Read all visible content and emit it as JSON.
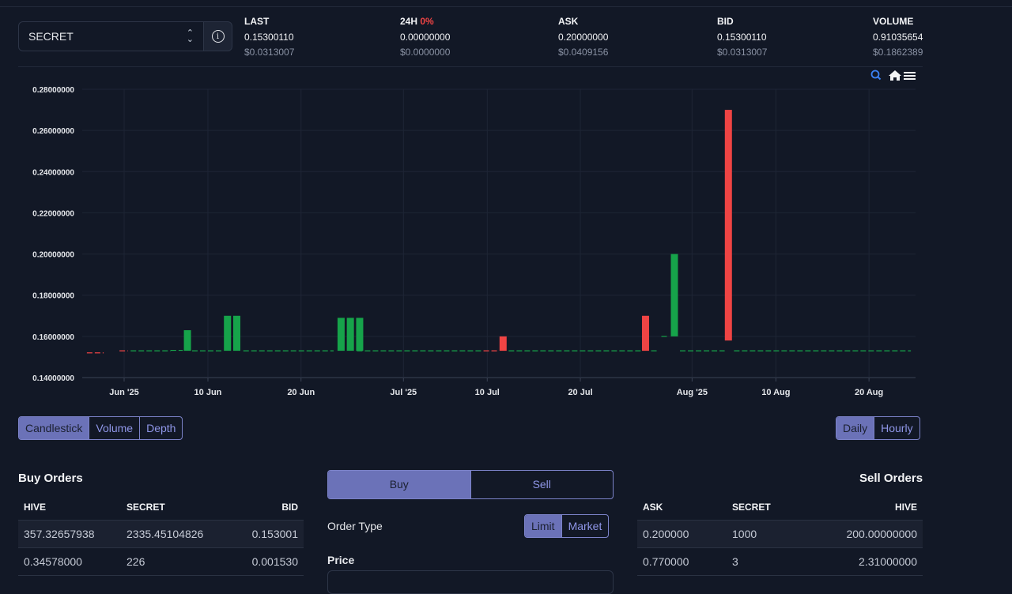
{
  "pair": {
    "selected": "SECRET"
  },
  "stats": [
    {
      "label": "LAST",
      "label_extra": "",
      "value": "0.15300110",
      "usd": "$0.0313007"
    },
    {
      "label": "24H",
      "label_extra": "0%",
      "value": "0.00000000",
      "usd": "$0.0000000"
    },
    {
      "label": "ASK",
      "label_extra": "",
      "value": "0.20000000",
      "usd": "$0.0409156"
    },
    {
      "label": "BID",
      "label_extra": "",
      "value": "0.15300110",
      "usd": "$0.0313007"
    },
    {
      "label": "VOLUME",
      "label_extra": "",
      "value": "0.91035654",
      "usd": "$0.1862389"
    }
  ],
  "colors": {
    "up": "#16a34a",
    "down": "#ef4444",
    "accent": "#6b72b8"
  },
  "chart_data": {
    "type": "candlestick",
    "y_ticks": [
      "0.14000000",
      "0.16000000",
      "0.18000000",
      "0.20000000",
      "0.22000000",
      "0.24000000",
      "0.26000000",
      "0.28000000"
    ],
    "ylim": [
      0.14,
      0.28
    ],
    "x_ticks": [
      "Jun '25",
      "10 Jun",
      "20 Jun",
      "Jul '25",
      "10 Jul",
      "20 Jul",
      "Aug '25",
      "10 Aug",
      "20 Aug"
    ],
    "x_tick_days": [
      0,
      9,
      19,
      30,
      39,
      49,
      61,
      70,
      80
    ],
    "day_range": [
      -4.5,
      85
    ],
    "baseline": 0.153,
    "flat_lines": [
      {
        "from": -4,
        "to": -2.2,
        "value": 0.152,
        "color": "down"
      },
      {
        "from": -0.5,
        "to": 0.4,
        "value": 0.153,
        "color": "down"
      },
      {
        "from": 0.7,
        "to": 5,
        "value": 0.153,
        "color": "up"
      },
      {
        "from": 5,
        "to": 6.3,
        "value": 0.1532,
        "color": "up"
      },
      {
        "from": 7.3,
        "to": 10.5,
        "value": 0.153,
        "color": "up"
      },
      {
        "from": 12.8,
        "to": 22.5,
        "value": 0.153,
        "color": "up"
      },
      {
        "from": 25,
        "to": 38.5,
        "value": 0.153,
        "color": "up"
      },
      {
        "from": 38.6,
        "to": 40.2,
        "value": 0.153,
        "color": "down"
      },
      {
        "from": 41.3,
        "to": 55.5,
        "value": 0.153,
        "color": "up"
      },
      {
        "from": 56.6,
        "to": 57.4,
        "value": 0.153,
        "color": "up"
      },
      {
        "from": 57.7,
        "to": 58.4,
        "value": 0.16,
        "color": "up"
      },
      {
        "from": 59.7,
        "to": 64.5,
        "value": 0.153,
        "color": "up"
      },
      {
        "from": 65.5,
        "to": 84.5,
        "value": 0.153,
        "color": "up"
      }
    ],
    "candles": [
      {
        "day": 6.8,
        "open": 0.153,
        "close": 0.163
      },
      {
        "day": 11.1,
        "open": 0.153,
        "close": 0.17
      },
      {
        "day": 12.1,
        "open": 0.153,
        "close": 0.17
      },
      {
        "day": 23.3,
        "open": 0.153,
        "close": 0.169
      },
      {
        "day": 24.3,
        "open": 0.153,
        "close": 0.169
      },
      {
        "day": 25.3,
        "open": 0.153,
        "close": 0.169
      },
      {
        "day": 40.7,
        "open": 0.16,
        "close": 0.153
      },
      {
        "day": 56.0,
        "open": 0.17,
        "close": 0.153
      },
      {
        "day": 59.1,
        "open": 0.16,
        "close": 0.2
      },
      {
        "day": 64.9,
        "open": 0.27,
        "close": 0.158
      }
    ]
  },
  "chart_tabs": [
    "Candlestick",
    "Volume",
    "Depth"
  ],
  "interval_tabs": [
    "Daily",
    "Hourly"
  ],
  "buy_orders": {
    "title": "Buy Orders",
    "headers": [
      "HIVE",
      "SECRET",
      "BID"
    ],
    "rows": [
      [
        "357.32657938",
        "2335.45104826",
        "0.153001"
      ],
      [
        "0.34578000",
        "226",
        "0.001530"
      ]
    ]
  },
  "sell_orders": {
    "title": "Sell Orders",
    "headers": [
      "ASK",
      "SECRET",
      "HIVE"
    ],
    "rows": [
      [
        "0.200000",
        "1000",
        "200.00000000"
      ],
      [
        "0.770000",
        "3",
        "2.31000000"
      ]
    ]
  },
  "trade": {
    "buy_label": "Buy",
    "sell_label": "Sell",
    "order_type_label": "Order Type",
    "limit_label": "Limit",
    "market_label": "Market",
    "price_label": "Price"
  }
}
